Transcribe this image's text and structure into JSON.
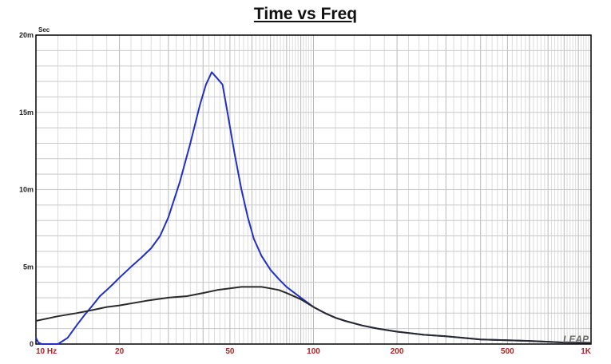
{
  "chart_data": {
    "type": "line",
    "title": "Time vs Freq",
    "ylabel": "Sec",
    "xscale": "log",
    "xlim": [
      10,
      1000
    ],
    "ylim": [
      0,
      0.02
    ],
    "grid": true,
    "x_ticks": [
      {
        "value": 10,
        "label": "10  Hz"
      },
      {
        "value": 20,
        "label": "20"
      },
      {
        "value": 50,
        "label": "50"
      },
      {
        "value": 100,
        "label": "100"
      },
      {
        "value": 200,
        "label": "200"
      },
      {
        "value": 500,
        "label": "500"
      },
      {
        "value": 1000,
        "label": "1K"
      }
    ],
    "y_ticks": [
      {
        "value": 0,
        "label": "0"
      },
      {
        "value": 0.005,
        "label": "5m"
      },
      {
        "value": 0.01,
        "label": "10m"
      },
      {
        "value": 0.015,
        "label": "15m"
      },
      {
        "value": 0.02,
        "label": "20m"
      }
    ],
    "watermark": "LEAP",
    "colors": {
      "grid": "#c8c8c8",
      "frame": "#000000",
      "x_tick_text": "#b22222",
      "y_tick_text": "#222222"
    },
    "series": [
      {
        "color": "#1f2fc8",
        "x": [
          10,
          10.2,
          10.5,
          11,
          12,
          13,
          14,
          15,
          16,
          17,
          18,
          19,
          20,
          22,
          24,
          26,
          28,
          30,
          33,
          36,
          39,
          41,
          43,
          45,
          47,
          49,
          52,
          55,
          58,
          61,
          65,
          70,
          75,
          80,
          90,
          100,
          110,
          120,
          130,
          150,
          170,
          200,
          250,
          300,
          400,
          500,
          600,
          700,
          800,
          1000
        ],
        "y": [
          0.0004,
          0.0001,
          0.0,
          0.0,
          0.0,
          0.0004,
          0.0012,
          0.0019,
          0.0025,
          0.0031,
          0.0035,
          0.0039,
          0.0043,
          0.005,
          0.0056,
          0.0062,
          0.007,
          0.0082,
          0.0105,
          0.013,
          0.0155,
          0.0168,
          0.0176,
          0.0172,
          0.0168,
          0.015,
          0.0123,
          0.01,
          0.0082,
          0.0068,
          0.0057,
          0.0048,
          0.0042,
          0.0037,
          0.003,
          0.0024,
          0.002,
          0.0017,
          0.0015,
          0.0012,
          0.001,
          0.0008,
          0.0006,
          0.0005,
          0.0003,
          0.00025,
          0.0002,
          0.00015,
          0.0001,
          8e-05
        ]
      },
      {
        "color": "#2a2a2a",
        "x": [
          10,
          12,
          14,
          16,
          18,
          20,
          25,
          30,
          35,
          40,
          45,
          50,
          55,
          60,
          65,
          70,
          75,
          80,
          90,
          100,
          110,
          120,
          130,
          150,
          170,
          200,
          250,
          300,
          400,
          500,
          600,
          700,
          800,
          1000
        ],
        "y": [
          0.0015,
          0.0018,
          0.002,
          0.0022,
          0.0024,
          0.0025,
          0.0028,
          0.003,
          0.0031,
          0.0033,
          0.0035,
          0.0036,
          0.0037,
          0.0037,
          0.0037,
          0.0036,
          0.0035,
          0.0033,
          0.0029,
          0.0024,
          0.002,
          0.0017,
          0.0015,
          0.0012,
          0.001,
          0.0008,
          0.0006,
          0.0005,
          0.0003,
          0.00025,
          0.0002,
          0.00015,
          0.0001,
          8e-05
        ]
      }
    ]
  }
}
